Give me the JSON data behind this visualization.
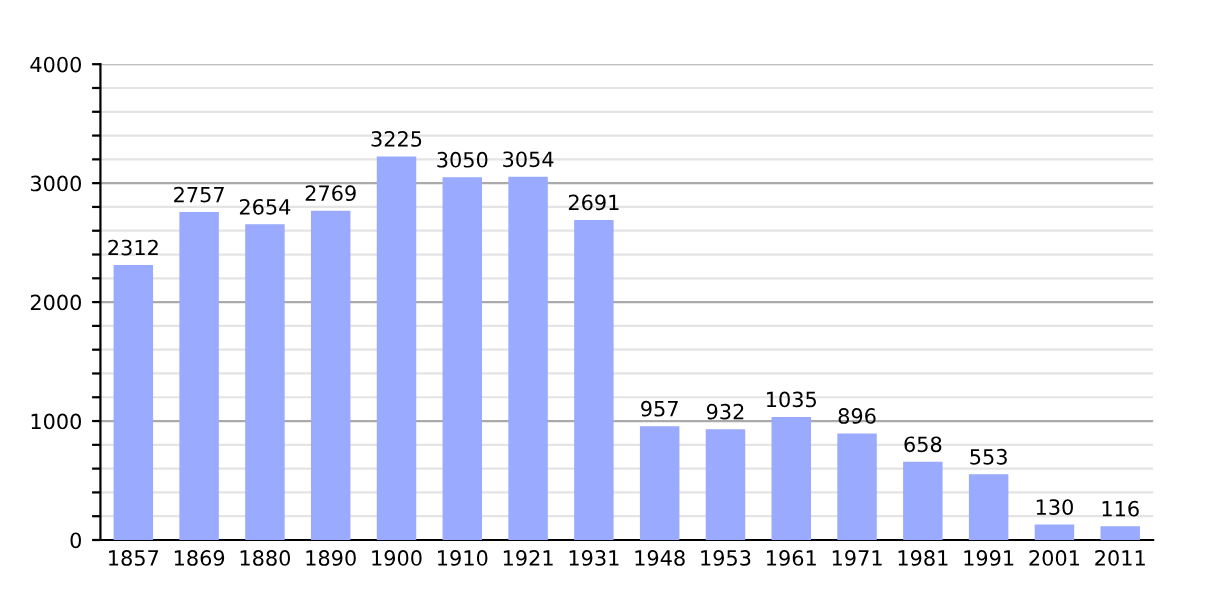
{
  "chart_data": {
    "type": "bar",
    "categories": [
      "1857",
      "1869",
      "1880",
      "1890",
      "1900",
      "1910",
      "1921",
      "1931",
      "1948",
      "1953",
      "1961",
      "1971",
      "1981",
      "1991",
      "2001",
      "2011"
    ],
    "values": [
      2312,
      2757,
      2654,
      2769,
      3225,
      3050,
      3054,
      2691,
      957,
      932,
      1035,
      896,
      658,
      553,
      130,
      116
    ],
    "color": "#99aaff",
    "ylim": [
      0,
      4000
    ],
    "yticks": [
      0,
      {
        "value": 200,
        "label": null
      },
      {
        "value": 400,
        "label": null
      },
      {
        "value": 600,
        "label": null
      },
      {
        "value": 800,
        "label": null
      },
      1000,
      {
        "value": 1200,
        "label": null
      },
      {
        "value": 1400,
        "label": null
      },
      {
        "value": 1600,
        "label": null
      },
      {
        "value": 1800,
        "label": null
      },
      2000,
      {
        "value": 2200,
        "label": null
      },
      {
        "value": 2400,
        "label": null
      },
      {
        "value": 2600,
        "label": null
      },
      {
        "value": 2800,
        "label": null
      },
      3000,
      {
        "value": 3200,
        "label": null
      },
      {
        "value": 3400,
        "label": null
      },
      {
        "value": 3600,
        "label": null
      },
      {
        "value": 3800,
        "label": null
      },
      4000
    ],
    "grid": "y",
    "data_labels": true
  }
}
